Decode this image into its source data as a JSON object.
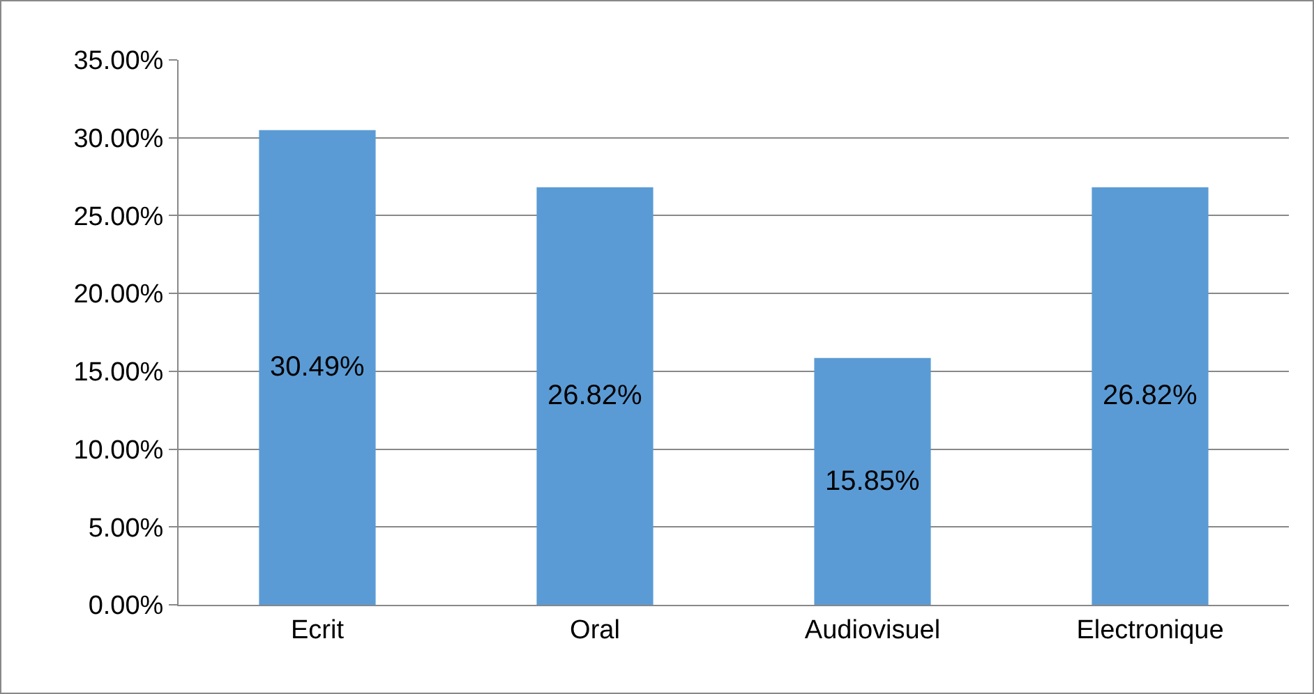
{
  "chart_data": {
    "type": "bar",
    "categories": [
      "Ecrit",
      "Oral",
      "Audiovisuel",
      "Electronique"
    ],
    "values": [
      30.49,
      26.82,
      15.85,
      26.82
    ],
    "value_labels": [
      "30.49%",
      "26.82%",
      "15.85%",
      "26.82%"
    ],
    "color": "#5b9bd5",
    "ylim": [
      0,
      35
    ],
    "yticks": [
      {
        "value": 0,
        "label": "0.00%"
      },
      {
        "value": 5,
        "label": "5.00%"
      },
      {
        "value": 10,
        "label": "10.00%"
      },
      {
        "value": 15,
        "label": "15.00%"
      },
      {
        "value": 20,
        "label": "20.00%"
      },
      {
        "value": 25,
        "label": "25.00%"
      },
      {
        "value": 30,
        "label": "30.00%"
      },
      {
        "value": 35,
        "label": "35.00%"
      }
    ],
    "grid": "y"
  }
}
